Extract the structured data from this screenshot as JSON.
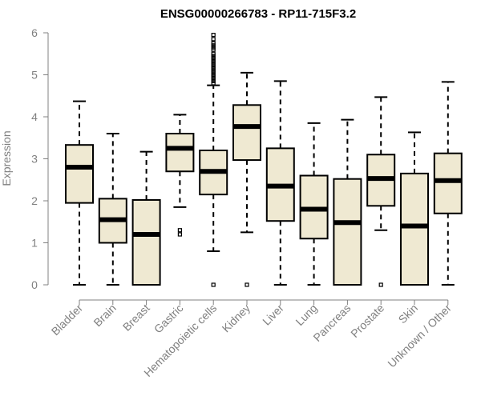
{
  "chart_data": {
    "type": "boxplot",
    "title": "ENSG00000266783 - RP11-715F3.2",
    "xlabel": "",
    "ylabel": "Expression",
    "ylim": [
      0,
      6
    ],
    "yticks": [
      0,
      1,
      2,
      3,
      4,
      5,
      6
    ],
    "box_color": "#efe9d2",
    "categories": [
      "Bladder",
      "Brain",
      "Breast",
      "Gastric",
      "Hematopoietic cells",
      "Kidney",
      "Liver",
      "Lung",
      "Pancreas",
      "Prostate",
      "Skin",
      "Unknown / Other"
    ],
    "boxes": [
      {
        "min": 0.0,
        "q1": 1.95,
        "median": 2.8,
        "q3": 3.33,
        "max": 4.37,
        "outliers": []
      },
      {
        "min": 0.0,
        "q1": 1.0,
        "median": 1.55,
        "q3": 2.05,
        "max": 3.6,
        "outliers": []
      },
      {
        "min": 0.0,
        "q1": 0.0,
        "median": 1.2,
        "q3": 2.02,
        "max": 3.17,
        "outliers": []
      },
      {
        "min": 1.85,
        "q1": 2.7,
        "median": 3.25,
        "q3": 3.6,
        "max": 4.05,
        "outliers": [
          1.2,
          1.3
        ]
      },
      {
        "min": 0.8,
        "q1": 2.15,
        "median": 2.7,
        "q3": 3.2,
        "max": 4.75,
        "outliers": [
          0.0,
          4.8,
          4.85,
          4.9,
          4.95,
          5.0,
          5.05,
          5.1,
          5.15,
          5.2,
          5.25,
          5.3,
          5.35,
          5.4,
          5.45,
          5.5,
          5.6,
          5.65,
          5.7,
          5.75,
          5.85,
          5.95
        ]
      },
      {
        "min": 1.25,
        "q1": 2.97,
        "median": 3.77,
        "q3": 4.28,
        "max": 5.05,
        "outliers": [
          0.0
        ]
      },
      {
        "min": 0.0,
        "q1": 1.52,
        "median": 2.35,
        "q3": 3.25,
        "max": 4.85,
        "outliers": []
      },
      {
        "min": 0.0,
        "q1": 1.1,
        "median": 1.8,
        "q3": 2.6,
        "max": 3.85,
        "outliers": []
      },
      {
        "min": 0.0,
        "q1": 0.0,
        "median": 1.48,
        "q3": 2.52,
        "max": 3.93,
        "outliers": []
      },
      {
        "min": 1.3,
        "q1": 1.88,
        "median": 2.53,
        "q3": 3.1,
        "max": 4.47,
        "outliers": [
          0.0
        ]
      },
      {
        "min": 0.0,
        "q1": 0.0,
        "median": 1.4,
        "q3": 2.65,
        "max": 3.63,
        "outliers": []
      },
      {
        "min": 0.0,
        "q1": 1.7,
        "median": 2.48,
        "q3": 3.13,
        "max": 4.83,
        "outliers": []
      }
    ]
  }
}
